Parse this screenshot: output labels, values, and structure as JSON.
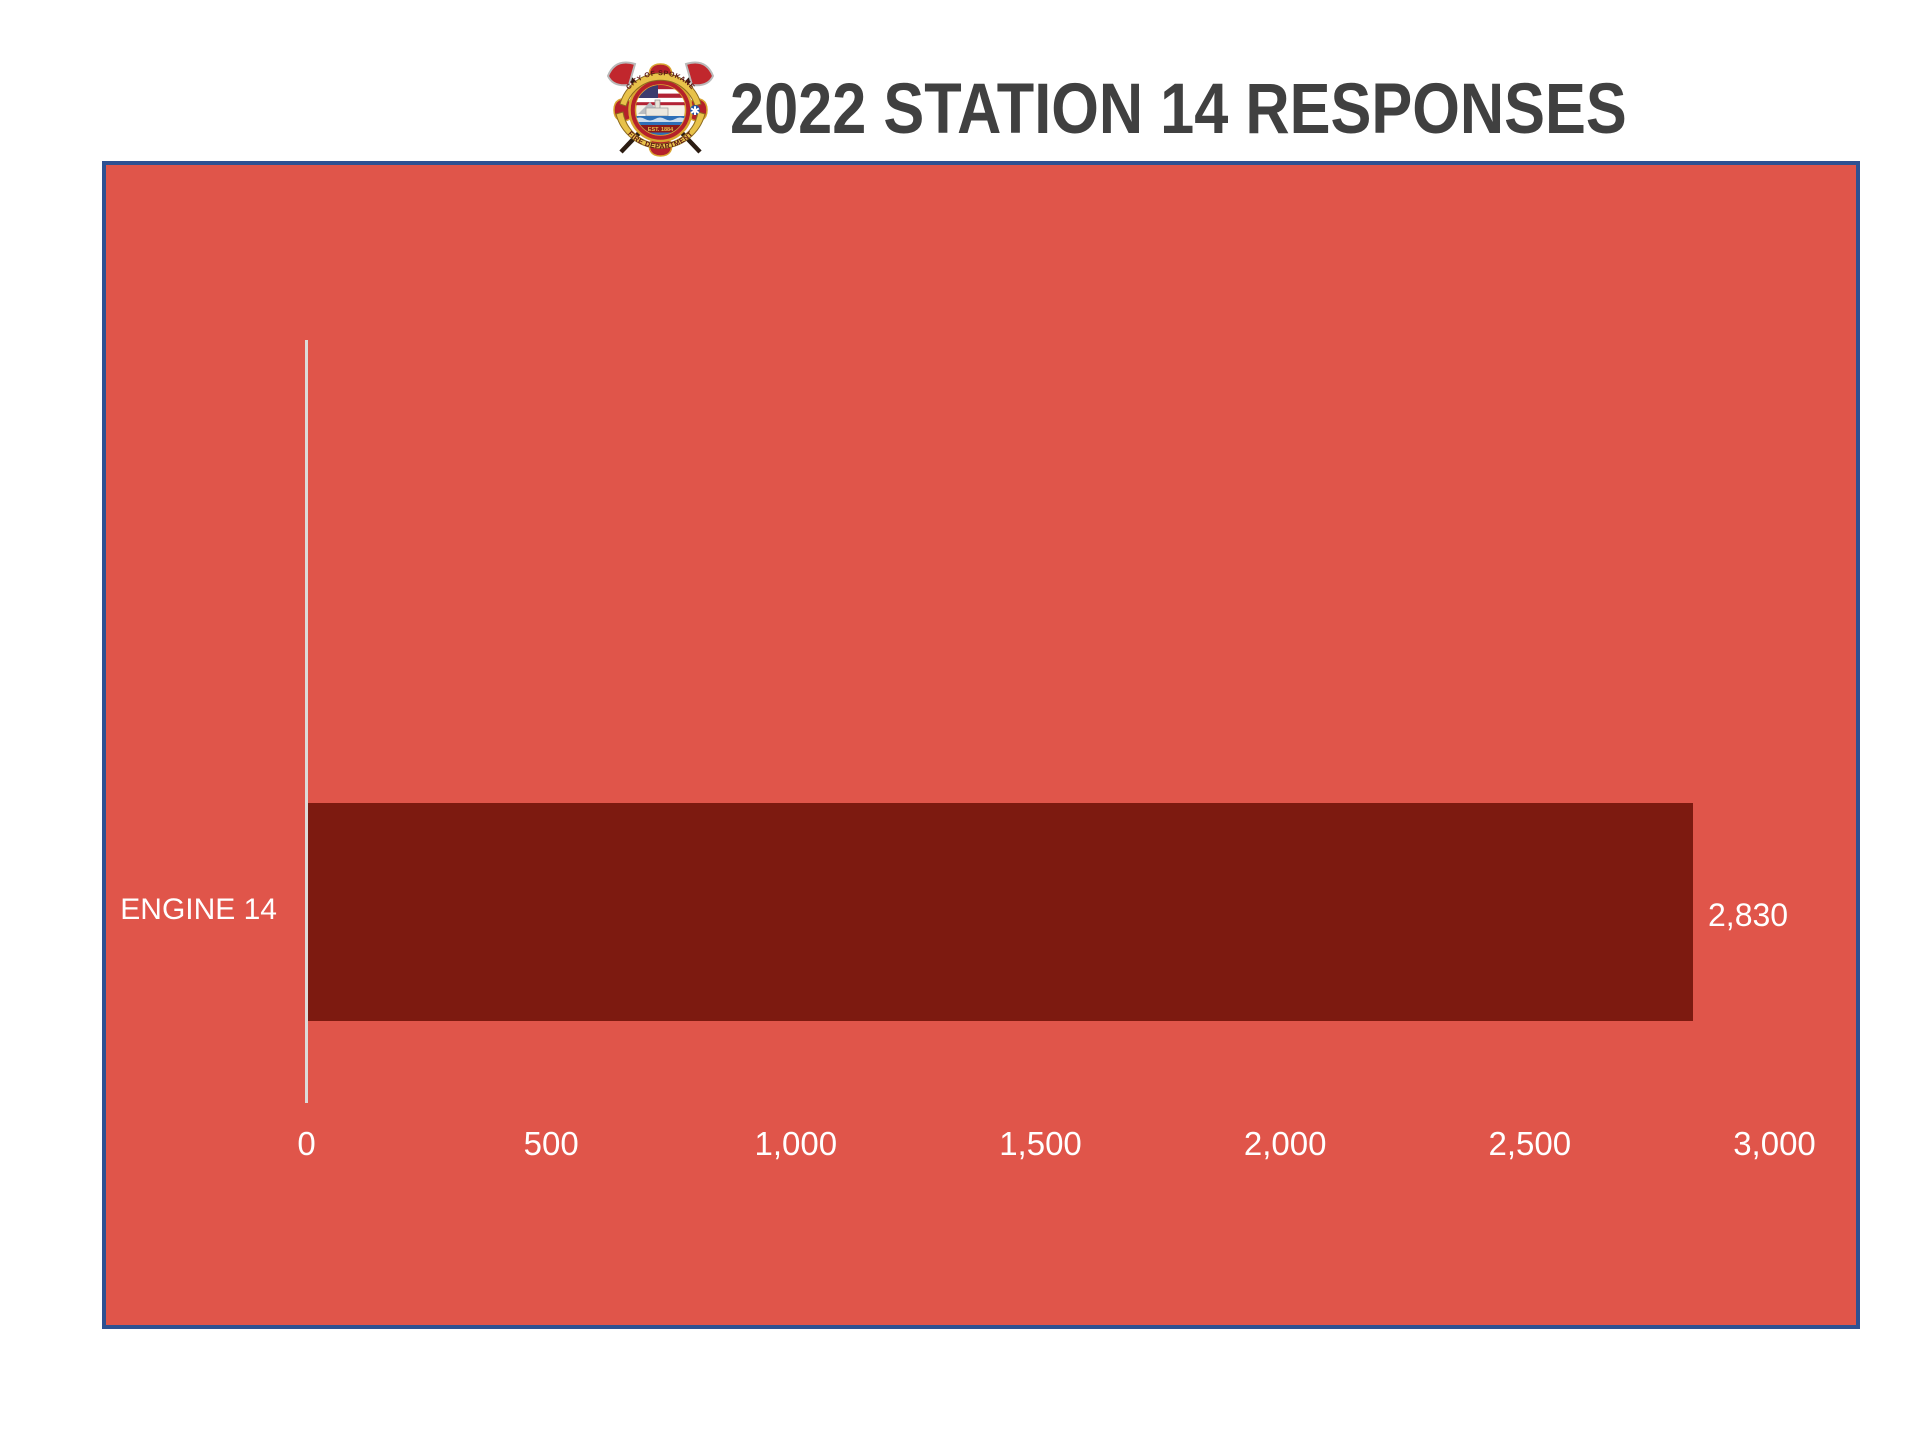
{
  "header": {
    "logo": {
      "banner_text_top": "CITY OF SPOKANE",
      "banner_text_bottom": "FIRE DEPARTMENT",
      "est_text": "EST. 1884"
    }
  },
  "chart_data": {
    "type": "bar",
    "orientation": "horizontal",
    "title": "2022 STATION 14 RESPONSES",
    "categories": [
      "ENGINE 14"
    ],
    "values": [
      2830
    ],
    "value_labels": [
      "2,830"
    ],
    "xlabel": "",
    "ylabel": "",
    "xlim": [
      0,
      3000
    ],
    "x_ticks": [
      "0",
      "500",
      "1,000",
      "1,500",
      "2,000",
      "2,500",
      "3,000"
    ],
    "grid": false,
    "legend": false,
    "colors": {
      "plot_bg": "#e0554a",
      "bar": "#7d1a10",
      "border": "#2e5192",
      "axis_line": "#dcdbd9",
      "label_text": "#ffffff",
      "title_text": "#404040"
    }
  }
}
